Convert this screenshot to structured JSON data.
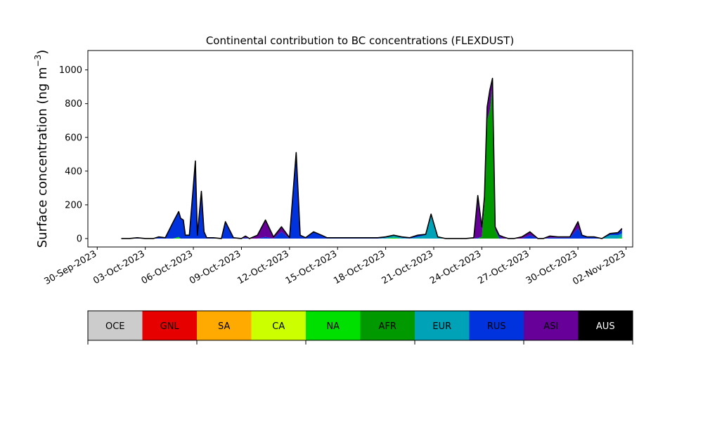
{
  "chart_data": {
    "type": "area",
    "stacked": true,
    "title": "Continental contribution to BC concentrations (FLEXDUST)",
    "ylabel_main": "Surface concentration (ng m",
    "ylabel_sup": "−3",
    "ylabel_close": ")",
    "xlabel": "",
    "ylim": [
      -50,
      1115
    ],
    "xlim": [
      "2023-09-29T10:00",
      "2023-11-02T10:00"
    ],
    "yticks": [
      0,
      200,
      400,
      600,
      800,
      1000
    ],
    "xticks": [
      {
        "date": "2023-09-30",
        "label": "30-Sep-2023"
      },
      {
        "date": "2023-10-03",
        "label": "03-Oct-2023"
      },
      {
        "date": "2023-10-06",
        "label": "06-Oct-2023"
      },
      {
        "date": "2023-10-09",
        "label": "09-Oct-2023"
      },
      {
        "date": "2023-10-12",
        "label": "12-Oct-2023"
      },
      {
        "date": "2023-10-15",
        "label": "15-Oct-2023"
      },
      {
        "date": "2023-10-18",
        "label": "18-Oct-2023"
      },
      {
        "date": "2023-10-21",
        "label": "21-Oct-2023"
      },
      {
        "date": "2023-10-24",
        "label": "24-Oct-2023"
      },
      {
        "date": "2023-10-27",
        "label": "27-Oct-2023"
      },
      {
        "date": "2023-10-30",
        "label": "30-Oct-2023"
      },
      {
        "date": "2023-11-02",
        "label": "02-Nov-2023"
      }
    ],
    "x": [
      "2023-10-01T12:00",
      "2023-10-02T00:00",
      "2023-10-02T12:00",
      "2023-10-03T00:00",
      "2023-10-03T12:00",
      "2023-10-03T20:00",
      "2023-10-04T06:00",
      "2023-10-04T18:00",
      "2023-10-05T02:00",
      "2023-10-05T05:00",
      "2023-10-05T09:00",
      "2023-10-05T12:00",
      "2023-10-05T18:00",
      "2023-10-06T03:00",
      "2023-10-06T06:00",
      "2023-10-06T12:00",
      "2023-10-06T16:00",
      "2023-10-06T20:00",
      "2023-10-07T06:00",
      "2023-10-07T18:00",
      "2023-10-08T00:00",
      "2023-10-08T12:00",
      "2023-10-09T00:00",
      "2023-10-09T06:00",
      "2023-10-09T12:00",
      "2023-10-10T00:00",
      "2023-10-10T12:00",
      "2023-10-11T00:00",
      "2023-10-11T12:00",
      "2023-10-12T00:00",
      "2023-10-12T10:00",
      "2023-10-12T16:00",
      "2023-10-13T00:00",
      "2023-10-13T12:00",
      "2023-10-14T00:00",
      "2023-10-14T08:00",
      "2023-10-14T14:00",
      "2023-10-14T20:00",
      "2023-10-15T06:00",
      "2023-10-15T18:00",
      "2023-10-16T06:00",
      "2023-10-16T12:00",
      "2023-10-17T00:00",
      "2023-10-17T12:00",
      "2023-10-18T00:00",
      "2023-10-18T12:00",
      "2023-10-19T00:00",
      "2023-10-19T12:00",
      "2023-10-20T00:00",
      "2023-10-20T12:00",
      "2023-10-20T20:00",
      "2023-10-21T06:00",
      "2023-10-21T18:00",
      "2023-10-22T12:00",
      "2023-10-23T00:00",
      "2023-10-23T12:00",
      "2023-10-23T18:00",
      "2023-10-24T00:00",
      "2023-10-24T04:00",
      "2023-10-24T08:00",
      "2023-10-24T12:00",
      "2023-10-24T16:00",
      "2023-10-24T20:00",
      "2023-10-25T02:00",
      "2023-10-25T08:00",
      "2023-10-25T16:00",
      "2023-10-26T00:00",
      "2023-10-26T12:00",
      "2023-10-27T00:00",
      "2023-10-27T12:00",
      "2023-10-27T20:00",
      "2023-10-28T06:00",
      "2023-10-28T18:00",
      "2023-10-29T00:00",
      "2023-10-29T12:00",
      "2023-10-30T00:00",
      "2023-10-30T06:00",
      "2023-10-30T14:00",
      "2023-10-31T00:00",
      "2023-10-31T12:00",
      "2023-11-01T00:00",
      "2023-11-01T12:00",
      "2023-11-01T18:00"
    ],
    "series": [
      {
        "name": "OCE",
        "color": "#cccccc",
        "values": [
          0,
          0,
          0,
          0,
          0,
          0,
          0,
          0,
          0,
          0,
          0,
          0,
          0,
          0,
          0,
          0,
          0,
          0,
          0,
          0,
          0,
          0,
          0,
          0,
          0,
          0,
          0,
          0,
          0,
          0,
          0,
          0,
          0,
          0,
          0,
          0,
          0,
          0,
          0,
          0,
          0,
          0,
          0,
          0,
          0,
          0,
          0,
          0,
          0,
          0,
          0,
          0,
          0,
          0,
          0,
          0,
          0,
          0,
          0,
          0,
          0,
          0,
          0,
          0,
          0,
          0,
          0,
          0,
          0,
          0,
          0,
          0,
          0,
          0,
          0,
          0,
          0,
          0,
          0,
          0,
          0,
          0,
          0
        ]
      },
      {
        "name": "GNL",
        "color": "#e60000",
        "values": [
          0,
          0,
          0,
          0,
          0,
          0,
          0,
          0,
          0,
          0,
          0,
          0,
          0,
          0,
          0,
          0,
          0,
          0,
          0,
          0,
          0,
          0,
          0,
          0,
          0,
          0,
          0,
          0,
          0,
          0,
          0,
          0,
          0,
          0,
          0,
          0,
          0,
          0,
          0,
          0,
          0,
          0,
          0,
          0,
          0,
          0,
          0,
          0,
          0,
          0,
          0,
          0,
          0,
          0,
          0,
          0,
          0,
          0,
          0,
          0,
          0,
          0,
          0,
          0,
          0,
          0,
          0,
          0,
          0,
          0,
          0,
          0,
          0,
          0,
          0,
          0,
          0,
          0,
          0,
          0,
          0,
          0,
          0
        ]
      },
      {
        "name": "SA",
        "color": "#ffaa00",
        "values": [
          0,
          0,
          0,
          0,
          0,
          0,
          0,
          0,
          0,
          0,
          0,
          0,
          0,
          0,
          0,
          0,
          0,
          0,
          0,
          0,
          0,
          0,
          0,
          0,
          0,
          0,
          0,
          0,
          0,
          0,
          0,
          0,
          0,
          0,
          0,
          0,
          0,
          0,
          0,
          0,
          0,
          0,
          0,
          0,
          0,
          0,
          0,
          0,
          0,
          0,
          0,
          0,
          0,
          0,
          0,
          0,
          0,
          0,
          0,
          0,
          0,
          0,
          0,
          0,
          0,
          0,
          0,
          0,
          0,
          0,
          0,
          0,
          0,
          0,
          0,
          0,
          0,
          0,
          0,
          0,
          0,
          0,
          0
        ]
      },
      {
        "name": "CA",
        "color": "#ccff00",
        "values": [
          0,
          0,
          0,
          0,
          0,
          0,
          0,
          0,
          0,
          0,
          0,
          0,
          0,
          0,
          0,
          0,
          0,
          0,
          0,
          0,
          0,
          0,
          0,
          0,
          0,
          0,
          0,
          0,
          0,
          0,
          0,
          0,
          0,
          0,
          0,
          0,
          0,
          0,
          0,
          0,
          0,
          0,
          0,
          0,
          0,
          0,
          0,
          0,
          0,
          0,
          0,
          0,
          0,
          0,
          0,
          0,
          0,
          0,
          0,
          0,
          0,
          0,
          0,
          0,
          0,
          0,
          0,
          0,
          0,
          0,
          0,
          0,
          0,
          0,
          0,
          0,
          0,
          0,
          0,
          0,
          0,
          0,
          0
        ]
      },
      {
        "name": "NA",
        "color": "#00e000",
        "values": [
          0,
          0,
          0,
          0,
          0,
          0,
          0,
          0,
          10,
          0,
          0,
          0,
          0,
          0,
          0,
          0,
          0,
          0,
          0,
          0,
          0,
          0,
          0,
          0,
          0,
          0,
          0,
          0,
          0,
          0,
          0,
          0,
          0,
          0,
          0,
          0,
          0,
          0,
          0,
          0,
          0,
          0,
          0,
          0,
          0,
          5,
          0,
          0,
          0,
          0,
          0,
          0,
          0,
          0,
          0,
          0,
          0,
          0,
          0,
          0,
          0,
          0,
          0,
          0,
          0,
          0,
          0,
          0,
          0,
          0,
          0,
          0,
          0,
          0,
          0,
          0,
          0,
          0,
          0,
          0,
          0,
          0,
          10
        ]
      },
      {
        "name": "AFR",
        "color": "#009900",
        "values": [
          0,
          0,
          0,
          0,
          0,
          0,
          0,
          0,
          0,
          0,
          0,
          0,
          0,
          0,
          0,
          0,
          0,
          0,
          0,
          0,
          0,
          0,
          0,
          0,
          0,
          0,
          0,
          0,
          0,
          0,
          0,
          0,
          0,
          0,
          0,
          0,
          0,
          0,
          0,
          0,
          0,
          0,
          0,
          0,
          0,
          0,
          0,
          0,
          0,
          0,
          0,
          0,
          0,
          0,
          0,
          0,
          0,
          10,
          200,
          700,
          760,
          900,
          50,
          0,
          0,
          0,
          0,
          0,
          0,
          0,
          0,
          0,
          0,
          0,
          0,
          0,
          0,
          0,
          0,
          0,
          0,
          0,
          0
        ]
      },
      {
        "name": "EUR",
        "color": "#00a2b8",
        "values": [
          0,
          0,
          0,
          0,
          0,
          0,
          0,
          0,
          0,
          0,
          0,
          0,
          0,
          0,
          0,
          0,
          0,
          0,
          0,
          0,
          0,
          0,
          0,
          0,
          0,
          0,
          0,
          0,
          0,
          0,
          0,
          0,
          0,
          0,
          0,
          0,
          0,
          0,
          0,
          0,
          0,
          0,
          0,
          0,
          5,
          15,
          5,
          0,
          10,
          20,
          140,
          10,
          0,
          0,
          0,
          0,
          0,
          0,
          0,
          0,
          0,
          0,
          0,
          0,
          0,
          0,
          0,
          0,
          0,
          0,
          0,
          0,
          0,
          0,
          0,
          0,
          0,
          0,
          0,
          0,
          20,
          20,
          20
        ]
      },
      {
        "name": "RUS",
        "color": "#0033dd",
        "values": [
          0,
          0,
          5,
          0,
          0,
          10,
          5,
          100,
          150,
          120,
          110,
          20,
          20,
          460,
          20,
          280,
          40,
          5,
          5,
          0,
          100,
          5,
          0,
          5,
          0,
          0,
          10,
          0,
          40,
          0,
          480,
          20,
          5,
          40,
          20,
          5,
          5,
          5,
          5,
          5,
          5,
          5,
          5,
          5,
          5,
          0,
          5,
          5,
          10,
          5,
          5,
          0,
          0,
          0,
          0,
          0,
          5,
          0,
          0,
          0,
          0,
          0,
          0,
          10,
          0,
          0,
          0,
          0,
          20,
          0,
          0,
          5,
          5,
          5,
          5,
          60,
          20,
          10,
          10,
          0,
          10,
          15,
          20
        ]
      },
      {
        "name": "ASI",
        "color": "#660099",
        "values": [
          0,
          0,
          0,
          0,
          0,
          0,
          0,
          0,
          0,
          0,
          0,
          0,
          0,
          0,
          0,
          0,
          0,
          0,
          0,
          0,
          0,
          0,
          0,
          10,
          0,
          20,
          100,
          10,
          30,
          5,
          30,
          0,
          0,
          0,
          0,
          0,
          0,
          0,
          0,
          0,
          0,
          0,
          0,
          0,
          0,
          0,
          0,
          0,
          0,
          0,
          0,
          0,
          0,
          0,
          0,
          5,
          250,
          60,
          50,
          80,
          120,
          50,
          20,
          10,
          10,
          0,
          0,
          10,
          20,
          0,
          0,
          10,
          5,
          5,
          5,
          40,
          0,
          0,
          0,
          0,
          0,
          0,
          10
        ]
      },
      {
        "name": "AUS",
        "color": "#000000",
        "values": [
          0,
          0,
          0,
          0,
          0,
          0,
          0,
          0,
          0,
          0,
          0,
          0,
          0,
          0,
          0,
          0,
          0,
          0,
          0,
          0,
          0,
          0,
          0,
          0,
          0,
          0,
          0,
          0,
          0,
          0,
          0,
          0,
          0,
          0,
          0,
          0,
          0,
          0,
          0,
          0,
          0,
          0,
          0,
          0,
          0,
          0,
          0,
          0,
          0,
          0,
          0,
          0,
          0,
          0,
          0,
          0,
          0,
          0,
          0,
          0,
          0,
          0,
          0,
          0,
          0,
          0,
          0,
          0,
          0,
          0,
          0,
          0,
          0,
          0,
          0,
          0,
          0,
          0,
          0,
          0,
          0,
          0,
          0
        ]
      }
    ],
    "legend_position": "bottom",
    "legend_colorbar": {
      "labels": [
        "OCE",
        "GNL",
        "SA",
        "CA",
        "NA",
        "AFR",
        "EUR",
        "RUS",
        "ASI",
        "AUS"
      ],
      "colors": [
        "#cccccc",
        "#e60000",
        "#ffaa00",
        "#ccff00",
        "#00e000",
        "#009900",
        "#00a2b8",
        "#0033dd",
        "#660099",
        "#000000"
      ]
    },
    "grid": false
  }
}
